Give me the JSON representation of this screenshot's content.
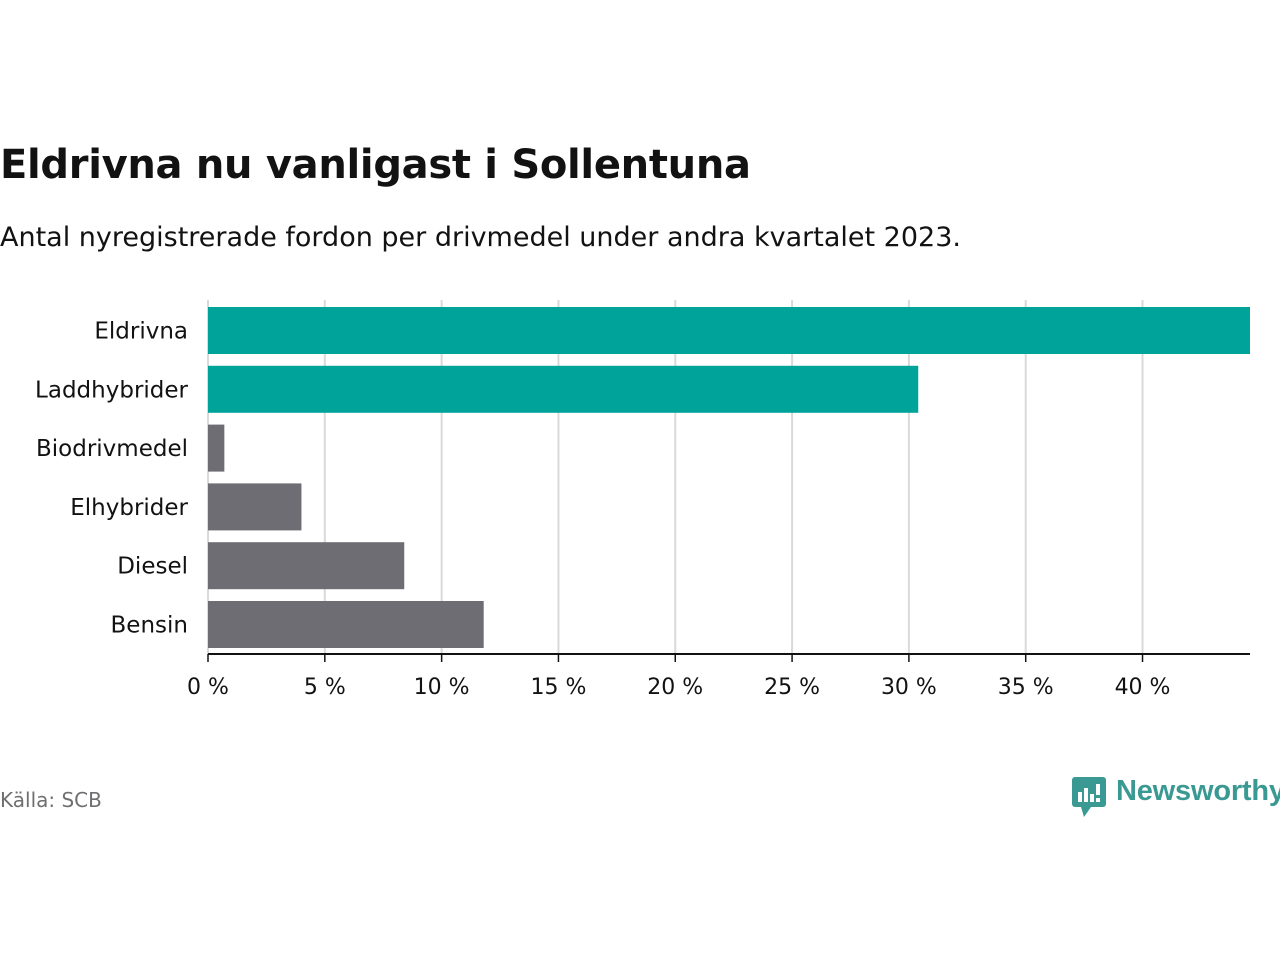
{
  "title": "Eldrivna nu vanligast i Sollentuna",
  "subtitle": "Antal nyregistrerade fordon per drivmedel under andra kvartalet 2023.",
  "source": "Källa: SCB",
  "brand": {
    "name": "Newsworthy",
    "color": "#3a9992",
    "icon": "bar-chart-icon"
  },
  "colors": {
    "highlight": "#00a39a",
    "other": "#6e6d73",
    "grid": "#d9d9d9",
    "axis": "#121212"
  },
  "chart_data": {
    "type": "bar",
    "orientation": "horizontal",
    "categories": [
      "Eldrivna",
      "Laddhybrider",
      "Biodrivmedel",
      "Elhybrider",
      "Diesel",
      "Bensin"
    ],
    "values": [
      44.6,
      30.4,
      0.7,
      4.0,
      8.4,
      11.8
    ],
    "highlighted": [
      true,
      true,
      false,
      false,
      false,
      false
    ],
    "xlim": [
      0,
      44.6
    ],
    "xticks": [
      0,
      5,
      10,
      15,
      20,
      25,
      30,
      35,
      40
    ],
    "xtick_labels": [
      "0 %",
      "5 %",
      "10 %",
      "15 %",
      "20 %",
      "25 %",
      "30 %",
      "35 %",
      "40 %"
    ],
    "xlabel": "",
    "ylabel": "",
    "grid": true,
    "legend": "none"
  }
}
